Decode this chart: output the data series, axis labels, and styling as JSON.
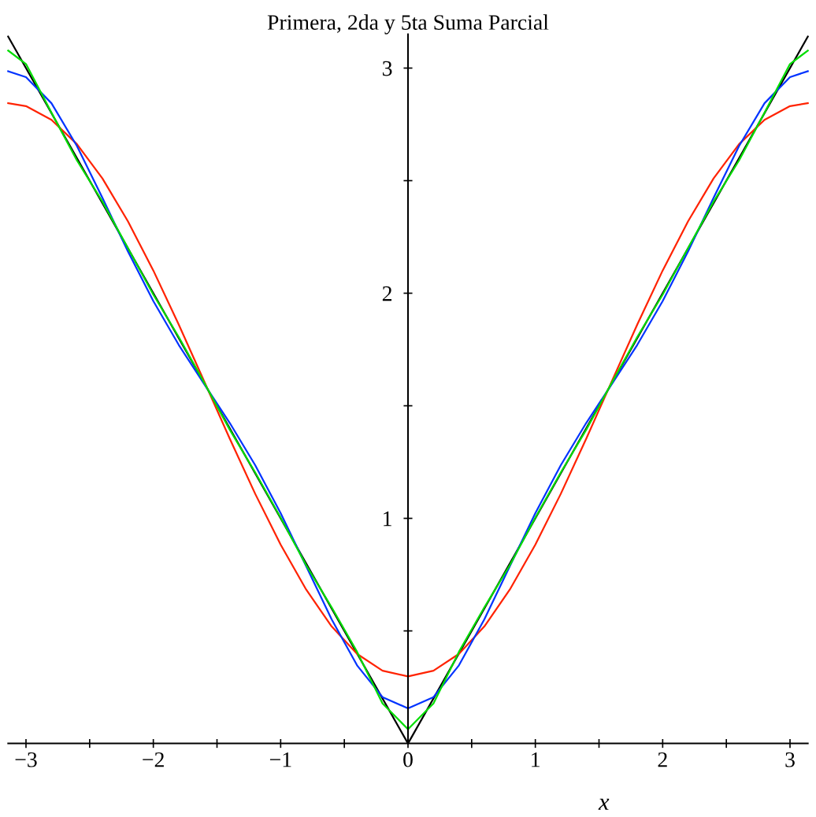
{
  "chart_data": {
    "type": "line",
    "title": "Primera, 2da y 5ta Suma Parcial",
    "xlabel": "x",
    "x": [
      -3.14,
      -3.0,
      -2.8,
      -2.6,
      -2.4,
      -2.2,
      -2.0,
      -1.8,
      -1.6,
      -1.4,
      -1.2,
      -1.0,
      -0.8,
      -0.6,
      -0.4,
      -0.2,
      0,
      0.2,
      0.4,
      0.6,
      0.8,
      1.0,
      1.2,
      1.4,
      1.6,
      1.8,
      2.0,
      2.2,
      2.4,
      2.6,
      2.8,
      3.0,
      3.14
    ],
    "series": [
      {
        "color": "#000000",
        "x": [
          -3.14,
          0,
          3.14
        ],
        "values": [
          3.14,
          0,
          3.14
        ]
      },
      {
        "color": "#ff2200",
        "values": [
          2.844,
          2.831,
          2.77,
          2.662,
          2.51,
          2.32,
          2.101,
          1.86,
          1.608,
          1.354,
          1.109,
          0.883,
          0.684,
          0.52,
          0.398,
          0.323,
          0.298,
          0.323,
          0.398,
          0.52,
          0.684,
          0.883,
          1.109,
          1.354,
          1.608,
          1.86,
          2.101,
          2.32,
          2.51,
          2.662,
          2.77,
          2.831,
          2.844
        ]
      },
      {
        "color": "#0033ff",
        "values": [
          2.986,
          2.96,
          2.844,
          2.654,
          2.424,
          2.186,
          1.965,
          1.77,
          1.596,
          1.424,
          1.236,
          1.023,
          0.788,
          0.552,
          0.347,
          0.206,
          0.156,
          0.206,
          0.347,
          0.552,
          0.788,
          1.023,
          1.236,
          1.424,
          1.596,
          1.77,
          1.965,
          2.186,
          2.424,
          2.654,
          2.844,
          2.96,
          2.986
        ]
      },
      {
        "color": "#00dd00",
        "values": [
          3.078,
          3.018,
          2.802,
          2.59,
          2.407,
          2.201,
          1.994,
          1.805,
          1.602,
          1.394,
          1.204,
          1.003,
          0.792,
          0.605,
          0.407,
          0.178,
          0.063,
          0.178,
          0.407,
          0.605,
          0.792,
          1.003,
          1.204,
          1.394,
          1.602,
          1.805,
          1.994,
          2.201,
          2.407,
          2.59,
          2.802,
          3.018,
          3.078
        ]
      }
    ],
    "xlim": [
      -3.14,
      3.14
    ],
    "ylim": [
      0,
      3.15
    ],
    "xticks": [
      -3,
      {
        "value": -2.5,
        "label": null
      },
      -2,
      {
        "value": -1.5,
        "label": null
      },
      -1,
      {
        "value": -0.5,
        "label": null
      },
      0,
      {
        "value": 0.5,
        "label": null
      },
      1,
      {
        "value": 1.5,
        "label": null
      },
      2,
      {
        "value": 2.5,
        "label": null
      },
      3
    ],
    "yticks": [
      {
        "value": 0.5,
        "label": null
      },
      1,
      {
        "value": 1.5,
        "label": null
      },
      2,
      {
        "value": 2.5,
        "label": null
      },
      3
    ],
    "grid": false,
    "legend": false,
    "line_style": "solid",
    "marker": "none"
  }
}
